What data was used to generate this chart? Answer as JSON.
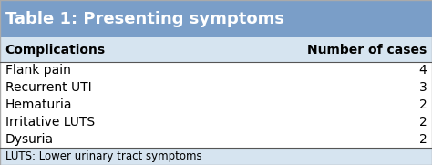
{
  "title": "Table 1: Presenting symptoms",
  "title_bg_color": "#7a9ec8",
  "header_bg_color": "#d6e4f0",
  "body_bg_color": "#ffffff",
  "footer_bg_color": "#d6e4f0",
  "col1_header": "Complications",
  "col2_header": "Number of cases",
  "rows": [
    [
      "Flank pain",
      "4"
    ],
    [
      "Recurrent UTI",
      "3"
    ],
    [
      "Hematuria",
      "2"
    ],
    [
      "Irritative LUTS",
      "2"
    ],
    [
      "Dysuria",
      "2"
    ]
  ],
  "footer_text": "LUTS: Lower urinary tract symptoms",
  "title_fontsize": 13,
  "header_fontsize": 10,
  "body_fontsize": 10,
  "footer_fontsize": 8.5,
  "border_color": "#aaaaaa",
  "divider_color": "#555555"
}
